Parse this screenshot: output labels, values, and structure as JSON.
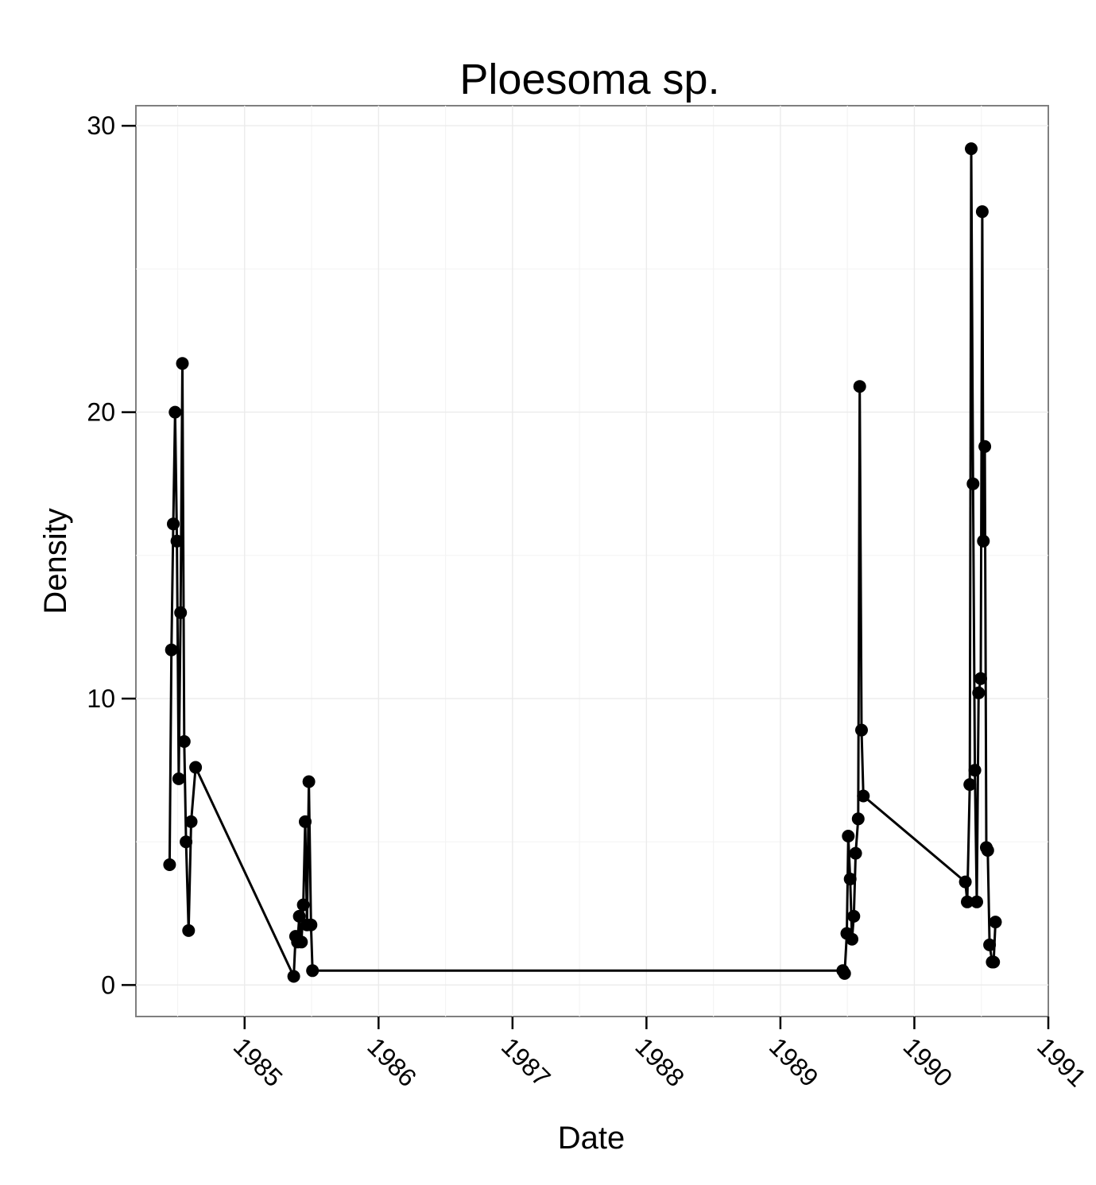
{
  "chart_data": {
    "type": "line",
    "title": "Ploesoma sp.",
    "xlabel": "Date",
    "ylabel": "Density",
    "x_ticks": [
      "1985",
      "1986",
      "1987",
      "1988",
      "1989",
      "1990",
      "1991"
    ],
    "y_ticks": [
      "0",
      "10",
      "20",
      "30"
    ],
    "xlim": [
      "1984-03-10",
      "1991-01-01"
    ],
    "ylim": [
      -1.1,
      30.7
    ],
    "grid": true,
    "markers": true,
    "line_color": "#000000",
    "background": "#ffffff",
    "grid_color": "#ebebeb",
    "series": [
      {
        "points": [
          [
            "1984-06-10",
            4.2
          ],
          [
            "1984-06-15",
            11.7
          ],
          [
            "1984-06-20",
            16.1
          ],
          [
            "1984-06-25",
            20.0
          ],
          [
            "1984-06-30",
            15.5
          ],
          [
            "1984-07-05",
            7.2
          ],
          [
            "1984-07-10",
            13.0
          ],
          [
            "1984-07-15",
            21.7
          ],
          [
            "1984-07-20",
            8.5
          ],
          [
            "1984-07-25",
            5.0
          ],
          [
            "1984-08-01",
            1.9
          ],
          [
            "1984-08-08",
            5.7
          ],
          [
            "1984-08-20",
            7.6
          ],
          [
            "1985-05-15",
            0.3
          ],
          [
            "1985-05-20",
            1.7
          ],
          [
            "1985-05-25",
            1.5
          ],
          [
            "1985-05-30",
            2.4
          ],
          [
            "1985-06-05",
            1.5
          ],
          [
            "1985-06-10",
            2.8
          ],
          [
            "1985-06-15",
            5.7
          ],
          [
            "1985-06-20",
            2.1
          ],
          [
            "1985-06-25",
            7.1
          ],
          [
            "1985-07-01",
            2.1
          ],
          [
            "1985-07-05",
            0.5
          ],
          [
            "1989-06-20",
            0.5
          ],
          [
            "1989-06-25",
            0.4
          ],
          [
            "1989-07-01",
            1.8
          ],
          [
            "1989-07-05",
            5.2
          ],
          [
            "1989-07-10",
            3.7
          ],
          [
            "1989-07-15",
            1.6
          ],
          [
            "1989-07-20",
            2.4
          ],
          [
            "1989-07-25",
            4.6
          ],
          [
            "1989-08-01",
            5.8
          ],
          [
            "1989-08-05",
            20.9
          ],
          [
            "1989-08-10",
            8.9
          ],
          [
            "1989-08-15",
            6.6
          ],
          [
            "1990-05-20",
            3.6
          ],
          [
            "1990-05-25",
            2.9
          ],
          [
            "1990-06-01",
            7.0
          ],
          [
            "1990-06-05",
            29.2
          ],
          [
            "1990-06-10",
            17.5
          ],
          [
            "1990-06-15",
            7.5
          ],
          [
            "1990-06-20",
            2.9
          ],
          [
            "1990-06-25",
            10.2
          ],
          [
            "1990-07-01",
            10.7
          ],
          [
            "1990-07-05",
            27.0
          ],
          [
            "1990-07-08",
            15.5
          ],
          [
            "1990-07-12",
            18.8
          ],
          [
            "1990-07-16",
            4.8
          ],
          [
            "1990-07-20",
            4.7
          ],
          [
            "1990-07-25",
            1.4
          ],
          [
            "1990-08-01",
            0.8
          ],
          [
            "1990-08-05",
            0.8
          ],
          [
            "1990-08-10",
            2.2
          ]
        ]
      }
    ]
  }
}
